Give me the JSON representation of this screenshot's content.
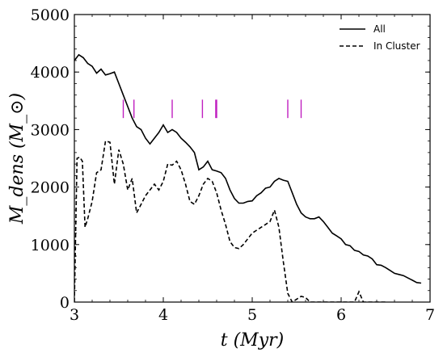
{
  "chart_data": {
    "type": "line",
    "xlabel": "t (Myr)",
    "ylabel": "M_dens (M_⊙)",
    "xlim": [
      3,
      7
    ],
    "ylim": [
      0,
      5000
    ],
    "xticks": [
      3,
      4,
      5,
      6,
      7
    ],
    "yticks": [
      0,
      1000,
      2000,
      3000,
      4000,
      5000
    ],
    "legend_position": "top-right",
    "series": [
      {
        "name": "All",
        "style": "solid",
        "color": "#000000",
        "x": [
          3.0,
          3.05,
          3.1,
          3.15,
          3.2,
          3.25,
          3.3,
          3.35,
          3.4,
          3.45,
          3.5,
          3.55,
          3.6,
          3.65,
          3.7,
          3.75,
          3.8,
          3.85,
          3.9,
          3.95,
          4.0,
          4.05,
          4.1,
          4.15,
          4.2,
          4.25,
          4.3,
          4.35,
          4.4,
          4.45,
          4.5,
          4.55,
          4.6,
          4.65,
          4.7,
          4.75,
          4.8,
          4.85,
          4.9,
          4.95,
          5.0,
          5.05,
          5.1,
          5.15,
          5.2,
          5.25,
          5.3,
          5.35,
          5.4,
          5.45,
          5.5,
          5.55,
          5.6,
          5.65,
          5.7,
          5.75,
          5.8,
          5.85,
          5.9,
          5.95,
          6.0,
          6.05,
          6.1,
          6.15,
          6.2,
          6.25,
          6.3,
          6.35,
          6.4,
          6.45,
          6.5,
          6.55,
          6.6,
          6.65,
          6.7,
          6.75,
          6.8,
          6.85,
          6.9
        ],
        "y": [
          4200,
          4300,
          4250,
          4150,
          4100,
          3980,
          4050,
          3950,
          3970,
          4000,
          3800,
          3600,
          3400,
          3200,
          3050,
          3000,
          2850,
          2750,
          2850,
          2950,
          3080,
          2950,
          3000,
          2950,
          2850,
          2780,
          2700,
          2600,
          2300,
          2350,
          2450,
          2300,
          2280,
          2250,
          2150,
          1950,
          1800,
          1720,
          1720,
          1750,
          1760,
          1850,
          1900,
          1980,
          2000,
          2100,
          2150,
          2120,
          2100,
          1900,
          1700,
          1550,
          1480,
          1450,
          1450,
          1480,
          1400,
          1300,
          1200,
          1150,
          1100,
          1000,
          980,
          900,
          880,
          820,
          800,
          750,
          650,
          640,
          600,
          550,
          500,
          480,
          460,
          420,
          380,
          340,
          330
        ]
      },
      {
        "name": "In Cluster",
        "style": "dashed",
        "color": "#000000",
        "x": [
          3.0,
          3.03,
          3.06,
          3.09,
          3.12,
          3.15,
          3.2,
          3.25,
          3.3,
          3.35,
          3.4,
          3.45,
          3.5,
          3.55,
          3.6,
          3.65,
          3.7,
          3.75,
          3.8,
          3.85,
          3.9,
          3.95,
          4.0,
          4.05,
          4.1,
          4.15,
          4.2,
          4.25,
          4.3,
          4.35,
          4.4,
          4.45,
          4.5,
          4.55,
          4.6,
          4.65,
          4.7,
          4.75,
          4.8,
          4.85,
          4.9,
          4.95,
          5.0,
          5.05,
          5.1,
          5.15,
          5.2,
          5.25,
          5.3,
          5.35,
          5.4,
          5.45,
          5.5,
          5.55,
          5.6,
          5.65,
          5.7,
          5.75,
          5.8,
          5.85,
          5.9,
          5.95,
          6.0,
          6.05,
          6.1,
          6.15,
          6.2,
          6.25,
          6.3,
          6.35,
          6.4,
          6.45,
          6.5
        ],
        "y": [
          0,
          2500,
          2520,
          2450,
          1300,
          1450,
          1750,
          2250,
          2300,
          2800,
          2780,
          2050,
          2650,
          2400,
          1950,
          2150,
          1550,
          1700,
          1850,
          1950,
          2050,
          1950,
          2100,
          2400,
          2380,
          2450,
          2300,
          2050,
          1750,
          1700,
          1850,
          2050,
          2150,
          2100,
          1900,
          1600,
          1350,
          1050,
          950,
          930,
          1000,
          1100,
          1200,
          1250,
          1300,
          1350,
          1400,
          1600,
          1300,
          700,
          150,
          0,
          50,
          100,
          80,
          0,
          0,
          0,
          0,
          0,
          0,
          0,
          0,
          0,
          0,
          0,
          180,
          0,
          0,
          0,
          0,
          0,
          0
        ]
      }
    ],
    "markers": {
      "color": "#c020c0",
      "x": [
        3.55,
        3.67,
        4.1,
        4.44,
        4.59,
        4.6,
        5.4,
        5.55
      ],
      "y_range": [
        3200,
        3520
      ]
    }
  }
}
